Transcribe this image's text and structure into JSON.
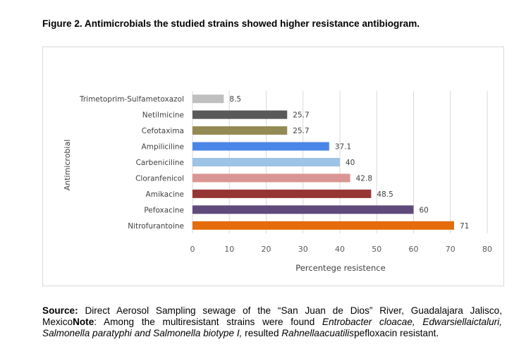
{
  "figure_title": "Figure 2. Antimicrobials the studied strains showed higher resistance antibiogram.",
  "caption": {
    "source_label": "Source:",
    "source_text": " Direct Aerosol Sampling sewage of the “San Juan de Dios” River, Guadalajara Jalisco, Mexico",
    "note_label": "Note",
    "note_text_1": ": Among the multiresistant strains were found ",
    "note_italic_1": "Entrobacter cloacae, Edwarsiellaictaluri, Salmonella paratyphi and Salmonella biotype I,",
    "note_text_2": " resulted ",
    "note_italic_2": "Rahnellaacuatilis",
    "note_text_3": "pefloxacin resistant."
  },
  "chart_data": {
    "type": "bar",
    "orientation": "horizontal",
    "title": "",
    "xlabel": "Percentege resistence",
    "ylabel": "Antimicrobial",
    "xlim": [
      0,
      80
    ],
    "xticks": [
      "0",
      "10",
      "20",
      "30",
      "40",
      "50",
      "60",
      "70",
      "80"
    ],
    "grid": true,
    "categories": [
      "Trimetoprim-Sulfametoxazol",
      "Netilmicine",
      "Cefotaxima",
      "Ampiliciline",
      "Carbeniciline",
      "Cloranfenicol",
      "Amikacine",
      "Pefoxacine",
      "Nitrofurantoine"
    ],
    "values": [
      8.5,
      25.7,
      25.7,
      37.1,
      40,
      42.8,
      48.5,
      60,
      71
    ],
    "value_labels": [
      "8.5",
      "25.7",
      "25.7",
      "37.1",
      "40",
      "42.8",
      "48.5",
      "60",
      "71"
    ],
    "colors": [
      "#bfbfbf",
      "#595959",
      "#948a54",
      "#4a86e8",
      "#9dc3e6",
      "#da9694",
      "#963634",
      "#604a7b",
      "#e46c0a"
    ]
  }
}
